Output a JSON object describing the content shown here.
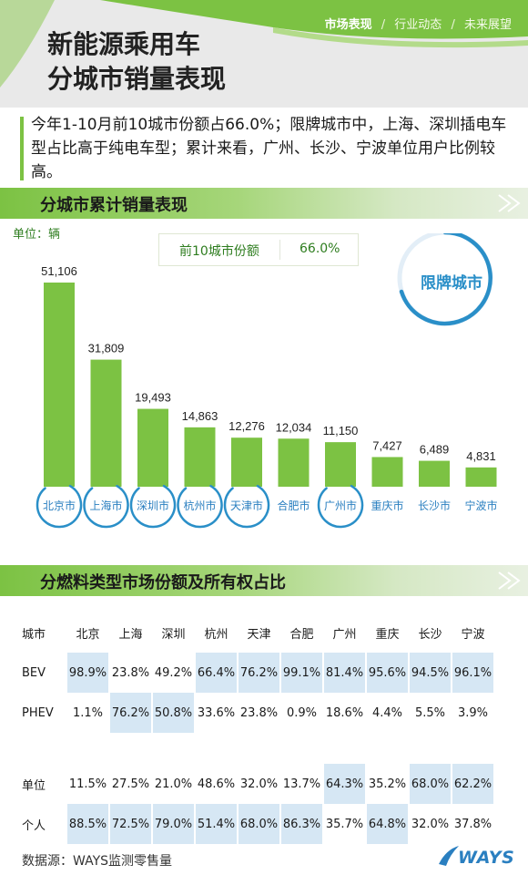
{
  "nav": {
    "items": [
      "市场表现",
      "行业动态",
      "未来展望"
    ],
    "separator": "/",
    "active_index": 0
  },
  "header": {
    "title_line1": "新能源乘用车",
    "title_line2": "分城市销量表现"
  },
  "summary": {
    "text": "今年1-10月前10城市份额占66.0%；限牌城市中，上海、深圳插电车型占比高于纯电车型；累计来看，广州、长沙、宁波单位用户比例较高。"
  },
  "section1": {
    "title": "分城市累计销量表现"
  },
  "section2": {
    "title": "分燃料类型市场份额及所有权占比"
  },
  "unit_label": "单位：辆",
  "share_box": {
    "label": "前10城市份额",
    "value": "66.0%"
  },
  "legend_badge": {
    "label": "限牌城市",
    "color": "#2a8fc8"
  },
  "colors": {
    "accent_green": "#7cc243",
    "bar_green": "#7cc243",
    "circle_blue": "#2a8fc8",
    "cell_highlight": "#d6e7f4"
  },
  "chart_data": {
    "type": "bar",
    "categories": [
      "北京市",
      "上海市",
      "深圳市",
      "杭州市",
      "天津市",
      "合肥市",
      "广州市",
      "重庆市",
      "长沙市",
      "宁波市"
    ],
    "values": [
      51106,
      31809,
      19493,
      14863,
      12276,
      12034,
      11150,
      7427,
      6489,
      4831
    ],
    "value_labels": [
      "51,106",
      "31,809",
      "19,493",
      "14,863",
      "12,276",
      "12,034",
      "11,150",
      "7,427",
      "6,489",
      "4,831"
    ],
    "restricted": [
      true,
      true,
      true,
      true,
      true,
      false,
      true,
      false,
      false,
      false
    ],
    "ylabel": "单位：辆",
    "ylim": [
      0,
      51106
    ],
    "grid": false
  },
  "table": {
    "header": [
      "城市",
      "北京",
      "上海",
      "深圳",
      "杭州",
      "天津",
      "合肥",
      "广州",
      "重庆",
      "长沙",
      "宁波"
    ],
    "fuel_rows": [
      {
        "label": "BEV",
        "values": [
          "98.9%",
          "23.8%",
          "49.2%",
          "66.4%",
          "76.2%",
          "99.1%",
          "81.4%",
          "95.6%",
          "94.5%",
          "96.1%"
        ],
        "highlight": [
          true,
          false,
          false,
          true,
          true,
          true,
          true,
          true,
          true,
          true
        ]
      },
      {
        "label": "PHEV",
        "values": [
          "1.1%",
          "76.2%",
          "50.8%",
          "33.6%",
          "23.8%",
          "0.9%",
          "18.6%",
          "4.4%",
          "5.5%",
          "3.9%"
        ],
        "highlight": [
          false,
          true,
          true,
          false,
          false,
          false,
          false,
          false,
          false,
          false
        ]
      }
    ],
    "owner_rows": [
      {
        "label": "单位",
        "values": [
          "11.5%",
          "27.5%",
          "21.0%",
          "48.6%",
          "32.0%",
          "13.7%",
          "64.3%",
          "35.2%",
          "68.0%",
          "62.2%"
        ],
        "highlight": [
          false,
          false,
          false,
          false,
          false,
          false,
          true,
          false,
          true,
          true
        ]
      },
      {
        "label": "个人",
        "values": [
          "88.5%",
          "72.5%",
          "79.0%",
          "51.4%",
          "68.0%",
          "86.3%",
          "35.7%",
          "64.8%",
          "32.0%",
          "37.8%"
        ],
        "highlight": [
          true,
          true,
          true,
          true,
          true,
          true,
          false,
          true,
          false,
          false
        ]
      }
    ]
  },
  "footer": {
    "source": "数据源：WAYS监测零售量",
    "logo_text": "WAYS"
  }
}
